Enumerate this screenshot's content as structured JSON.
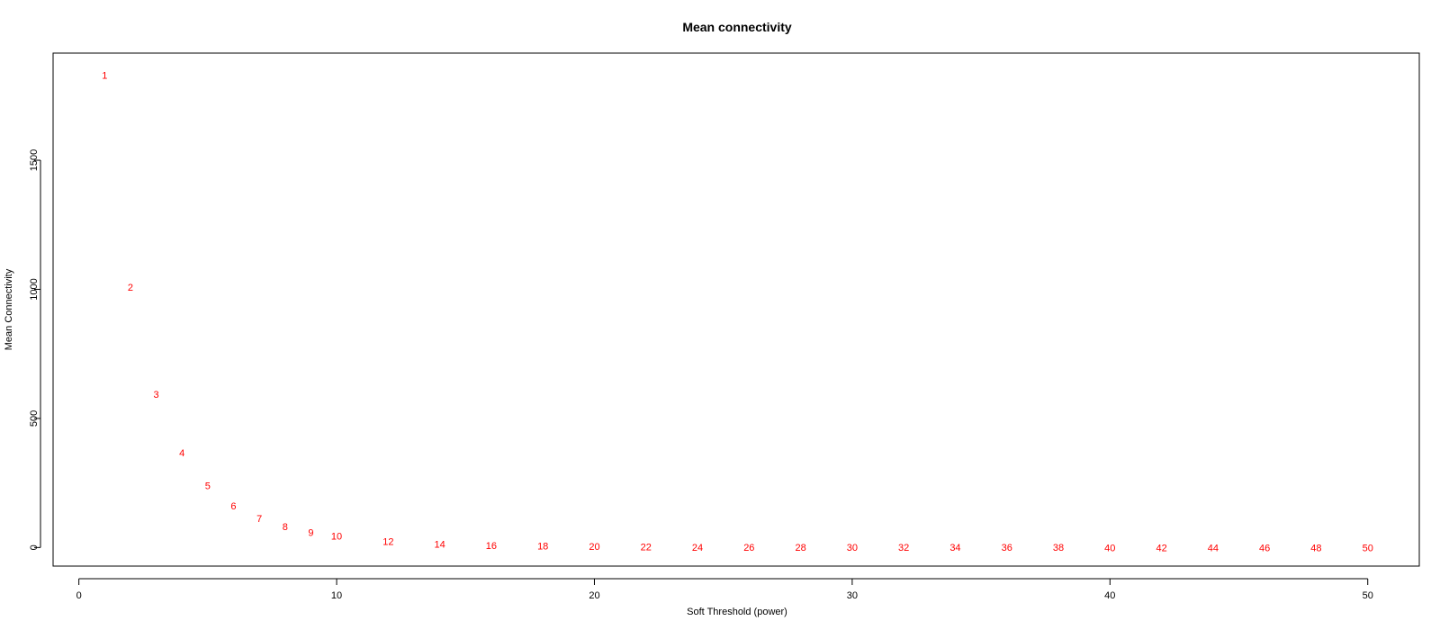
{
  "chart_data": {
    "type": "scatter",
    "title": "Mean connectivity",
    "xlabel": "Soft Threshold (power)",
    "ylabel": "Mean Connectivity",
    "xlim": [
      -1,
      52
    ],
    "ylim": [
      -72,
      1915
    ],
    "xticks": [
      0,
      10,
      20,
      30,
      40,
      50
    ],
    "yticks": [
      0,
      500,
      1000,
      1500
    ],
    "grid": false,
    "legend": "none",
    "point_color": "#ff0000",
    "marker": "text-label",
    "points": [
      {
        "x": 1,
        "y": 1830,
        "label": "1"
      },
      {
        "x": 2,
        "y": 1008,
        "label": "2"
      },
      {
        "x": 3,
        "y": 593,
        "label": "3"
      },
      {
        "x": 4,
        "y": 368,
        "label": "4"
      },
      {
        "x": 5,
        "y": 240,
        "label": "5"
      },
      {
        "x": 6,
        "y": 162,
        "label": "6"
      },
      {
        "x": 7,
        "y": 113,
        "label": "7"
      },
      {
        "x": 8,
        "y": 81,
        "label": "8"
      },
      {
        "x": 9,
        "y": 58,
        "label": "9"
      },
      {
        "x": 10,
        "y": 44,
        "label": "10"
      },
      {
        "x": 12,
        "y": 24,
        "label": "12"
      },
      {
        "x": 14,
        "y": 14,
        "label": "14"
      },
      {
        "x": 16,
        "y": 9,
        "label": "16"
      },
      {
        "x": 18,
        "y": 6,
        "label": "18"
      },
      {
        "x": 20,
        "y": 4,
        "label": "20"
      },
      {
        "x": 22,
        "y": 2.5,
        "label": "22"
      },
      {
        "x": 24,
        "y": 2,
        "label": "24"
      },
      {
        "x": 26,
        "y": 1.5,
        "label": "26"
      },
      {
        "x": 28,
        "y": 1.2,
        "label": "28"
      },
      {
        "x": 30,
        "y": 1,
        "label": "30"
      },
      {
        "x": 32,
        "y": 0.8,
        "label": "32"
      },
      {
        "x": 34,
        "y": 0.6,
        "label": "34"
      },
      {
        "x": 36,
        "y": 0.5,
        "label": "36"
      },
      {
        "x": 38,
        "y": 0.4,
        "label": "38"
      },
      {
        "x": 40,
        "y": 0.3,
        "label": "40"
      },
      {
        "x": 42,
        "y": 0.3,
        "label": "42"
      },
      {
        "x": 44,
        "y": 0.2,
        "label": "44"
      },
      {
        "x": 46,
        "y": 0.2,
        "label": "46"
      },
      {
        "x": 48,
        "y": 0.2,
        "label": "48"
      },
      {
        "x": 50,
        "y": 0.1,
        "label": "50"
      }
    ]
  }
}
